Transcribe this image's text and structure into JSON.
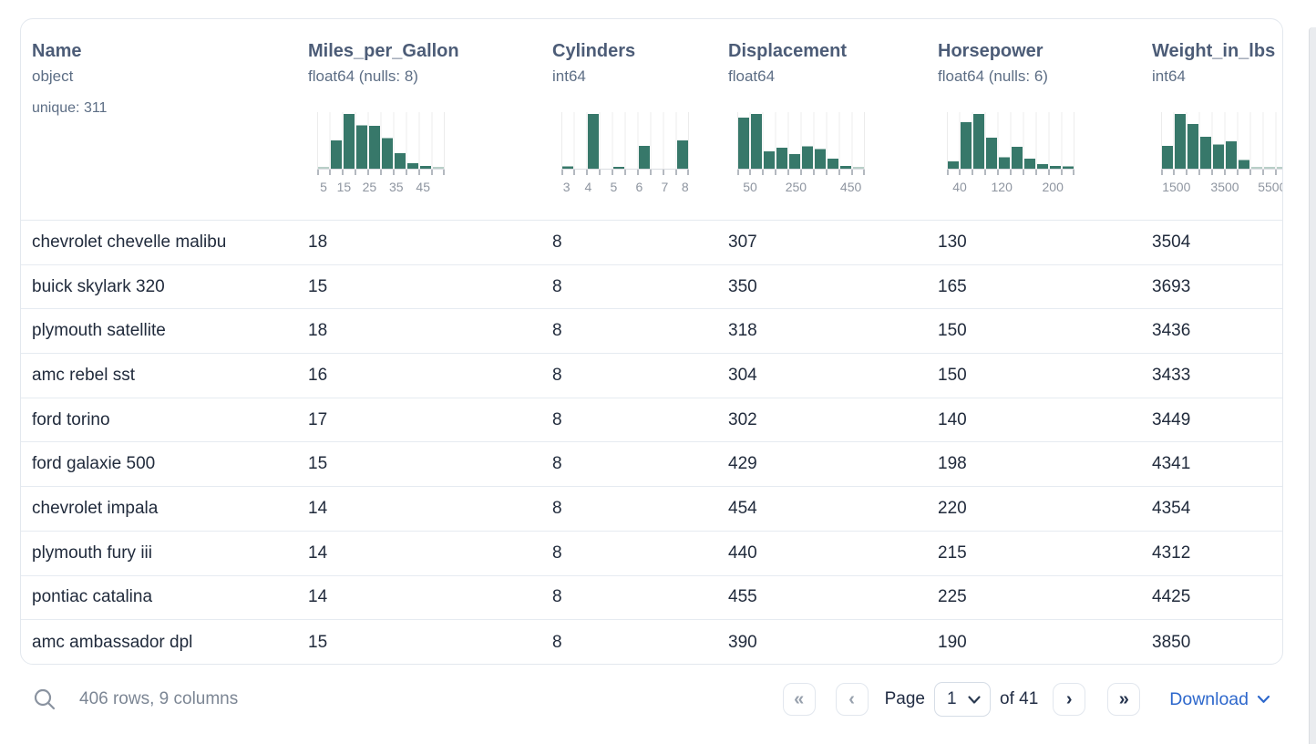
{
  "table": {
    "columns": [
      {
        "name": "Name",
        "dtype": "object",
        "extra": "unique: 311"
      },
      {
        "name": "Miles_per_Gallon",
        "dtype": "float64 (nulls: 8)",
        "hist": {
          "bars": [
            0.015,
            0.52,
            1.0,
            0.79,
            0.78,
            0.56,
            0.28,
            0.1,
            0.05,
            0.015
          ],
          "ticks": [
            {
              "label": "5",
              "pos": 0.05
            },
            {
              "label": "15",
              "pos": 0.21
            },
            {
              "label": "25",
              "pos": 0.41
            },
            {
              "label": "35",
              "pos": 0.62
            },
            {
              "label": "45",
              "pos": 0.83
            }
          ]
        }
      },
      {
        "name": "Cylinders",
        "dtype": "int64",
        "hist": {
          "bars": [
            0.04,
            0,
            1.0,
            0,
            0.025,
            0,
            0.42,
            0,
            0,
            0.52
          ],
          "ticks": [
            {
              "label": "3",
              "pos": 0.04
            },
            {
              "label": "4",
              "pos": 0.21
            },
            {
              "label": "5",
              "pos": 0.41
            },
            {
              "label": "6",
              "pos": 0.61
            },
            {
              "label": "7",
              "pos": 0.81
            },
            {
              "label": "8",
              "pos": 0.97
            }
          ]
        }
      },
      {
        "name": "Displacement",
        "dtype": "float64",
        "hist": {
          "bars": [
            0.93,
            1.0,
            0.32,
            0.38,
            0.27,
            0.41,
            0.36,
            0.18,
            0.05,
            0.015
          ],
          "ticks": [
            {
              "label": "50",
              "pos": 0.1
            },
            {
              "label": "250",
              "pos": 0.46
            },
            {
              "label": "450",
              "pos": 0.89
            }
          ]
        }
      },
      {
        "name": "Horsepower",
        "dtype": "float64 (nulls: 6)",
        "hist": {
          "bars": [
            0.13,
            0.85,
            1.0,
            0.57,
            0.21,
            0.4,
            0.18,
            0.08,
            0.05,
            0.04
          ],
          "ticks": [
            {
              "label": "40",
              "pos": 0.1
            },
            {
              "label": "120",
              "pos": 0.43
            },
            {
              "label": "200",
              "pos": 0.83
            }
          ]
        }
      },
      {
        "name": "Weight_in_lbs",
        "dtype": "int64",
        "hist": {
          "bars": [
            0.42,
            1.0,
            0.82,
            0.58,
            0.44,
            0.5,
            0.16,
            0.015,
            0.015,
            0.015
          ],
          "ticks": [
            {
              "label": "1500",
              "pos": 0.12
            },
            {
              "label": "3500",
              "pos": 0.5
            },
            {
              "label": "5500",
              "pos": 0.87
            }
          ]
        }
      }
    ],
    "rows": [
      [
        "chevrolet chevelle malibu",
        "18",
        "8",
        "307",
        "130",
        "3504"
      ],
      [
        "buick skylark 320",
        "15",
        "8",
        "350",
        "165",
        "3693"
      ],
      [
        "plymouth satellite",
        "18",
        "8",
        "318",
        "150",
        "3436"
      ],
      [
        "amc rebel sst",
        "16",
        "8",
        "304",
        "150",
        "3433"
      ],
      [
        "ford torino",
        "17",
        "8",
        "302",
        "140",
        "3449"
      ],
      [
        "ford galaxie 500",
        "15",
        "8",
        "429",
        "198",
        "4341"
      ],
      [
        "chevrolet impala",
        "14",
        "8",
        "454",
        "220",
        "4354"
      ],
      [
        "plymouth fury iii",
        "14",
        "8",
        "440",
        "215",
        "4312"
      ],
      [
        "pontiac catalina",
        "14",
        "8",
        "455",
        "225",
        "4425"
      ],
      [
        "amc ambassador dpl",
        "15",
        "8",
        "390",
        "190",
        "3850"
      ]
    ]
  },
  "footer": {
    "summary": "406 rows, 9 columns",
    "pagination": {
      "page_label": "Page",
      "page_value": "1",
      "of_label": "of 41",
      "first": "«",
      "prev": "‹",
      "next": "›",
      "last": "»"
    },
    "download_label": "Download"
  },
  "colors": {
    "bar": "#37786a",
    "bar_faint": "#b9cfc8",
    "gridline": "#ececec",
    "axis_line": "#d9dce0",
    "tick": "#b4b9c0",
    "tick_label": "#8e95a0",
    "accent_blue": "#2e68cc"
  }
}
